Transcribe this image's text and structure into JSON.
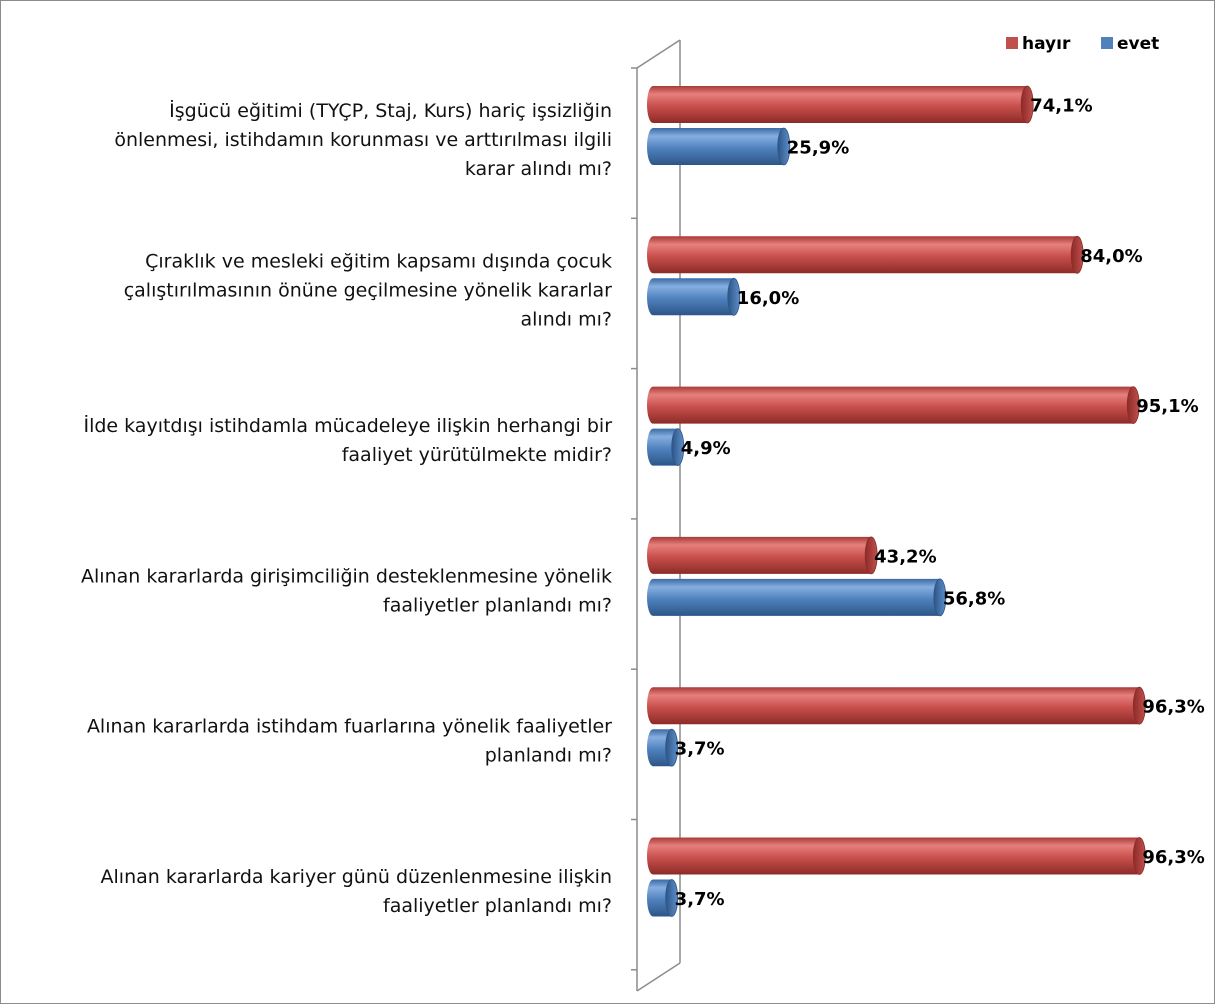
{
  "chart_data": {
    "type": "bar",
    "orientation": "horizontal",
    "style": "3d-cylinder",
    "categories": [
      [
        "İşgücü eğitimi (TYÇP,  Staj, Kurs) hariç işsizliğin",
        "önlenmesi, istihdamın korunması ve arttırılması ilgili",
        "karar alındı mı?"
      ],
      [
        "Çıraklık ve mesleki eğitim kapsamı dışında çocuk",
        "çalıştırılmasının önüne geçilmesine yönelik kararlar",
        "alındı mı?"
      ],
      [
        "İlde kayıtdışı istihdamla mücadeleye ilişkin herhangi bir",
        "faaliyet yürütülmekte midir?"
      ],
      [
        "Alınan kararlarda girişimciliğin desteklenmesine yönelik",
        "faaliyetler planlandı mı?"
      ],
      [
        "Alınan kararlarda istihdam fuarlarına yönelik faaliyetler",
        "planlandı mı?"
      ],
      [
        "Alınan kararlarda kariyer günü düzenlenmesine ilişkin",
        "faaliyetler planlandı mı?"
      ]
    ],
    "series": [
      {
        "name": "hayır",
        "color": "#c0504d",
        "values": [
          74.1,
          84.0,
          95.1,
          43.2,
          96.3,
          96.3
        ],
        "labels": [
          "74,1%",
          "84,0%",
          "95,1%",
          "43,2%",
          "96,3%",
          "96,3%"
        ]
      },
      {
        "name": "evet",
        "color": "#4f81bd",
        "values": [
          25.9,
          16.0,
          4.9,
          56.8,
          3.7,
          3.7
        ],
        "labels": [
          "25,9%",
          "16,0%",
          "4,9%",
          "56,8%",
          "3,7%",
          "3,7%"
        ]
      }
    ],
    "xlim": [
      0,
      100
    ],
    "grid": false,
    "legend_position": "top-right"
  }
}
